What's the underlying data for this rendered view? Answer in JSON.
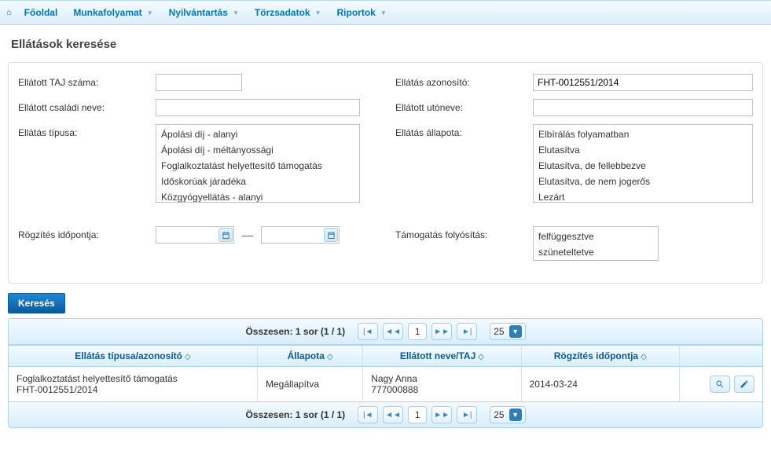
{
  "nav": {
    "items": [
      {
        "label": "Főoldal",
        "dropdown": false
      },
      {
        "label": "Munkafolyamat",
        "dropdown": true
      },
      {
        "label": "Nyilvántartás",
        "dropdown": true
      },
      {
        "label": "Törzsadatok",
        "dropdown": true
      },
      {
        "label": "Riportok",
        "dropdown": true
      }
    ]
  },
  "page": {
    "title": "Ellátások keresése"
  },
  "form": {
    "taj_label": "Ellátott TAJ száma:",
    "taj_value": "",
    "id_label": "Ellátás azonosító:",
    "id_value": "FHT-0012551/2014",
    "family_label": "Ellátott családi neve:",
    "family_value": "",
    "given_label": "Ellátott utóneve:",
    "given_value": "",
    "type_label": "Ellátás típusa:",
    "type_options": [
      "Ápolási díj - alanyi",
      "Ápolási díj - méltányossági",
      "Foglalkoztatást helyettesítő támogatás",
      "Időskorúak járadéka",
      "Közgyógyellátás - alanyi"
    ],
    "status_label": "Ellátás állapota:",
    "status_options": [
      "Elbírálás folyamatban",
      "Elutasítva",
      "Elutasítva, de fellebbezve",
      "Elutasítva, de nem jogerős",
      "Lezárt"
    ],
    "recdate_label": "Rögzítés időpontja:",
    "recdate_from": "",
    "recdate_to": "",
    "payout_label": "Támogatás folyósítás:",
    "payout_options": [
      "felfüggesztve",
      "szüneteltetve"
    ],
    "search_button": "Keresés"
  },
  "table": {
    "summary": "Összesen: 1 sor (1 / 1)",
    "page_current": "1",
    "page_size": "25",
    "columns": [
      "Ellátás típusa/azonosító",
      "Állapota",
      "Ellátott neve/TAJ",
      "Rögzítés időpontja",
      ""
    ],
    "row": {
      "type_line1": "Foglalkoztatást helyettesítő támogatás",
      "type_line2": "FHT-0012551/2014",
      "status": "Megállapítva",
      "name_line1": "Nagy Anna",
      "name_line2": "777000888",
      "recorded": "2014-03-24"
    }
  },
  "colors": {
    "accent": "#0a5a9c",
    "link": "#0277bd",
    "border": "#b3d3e7",
    "header_grad_from": "#f3faff",
    "header_grad_to": "#d9eefb"
  }
}
